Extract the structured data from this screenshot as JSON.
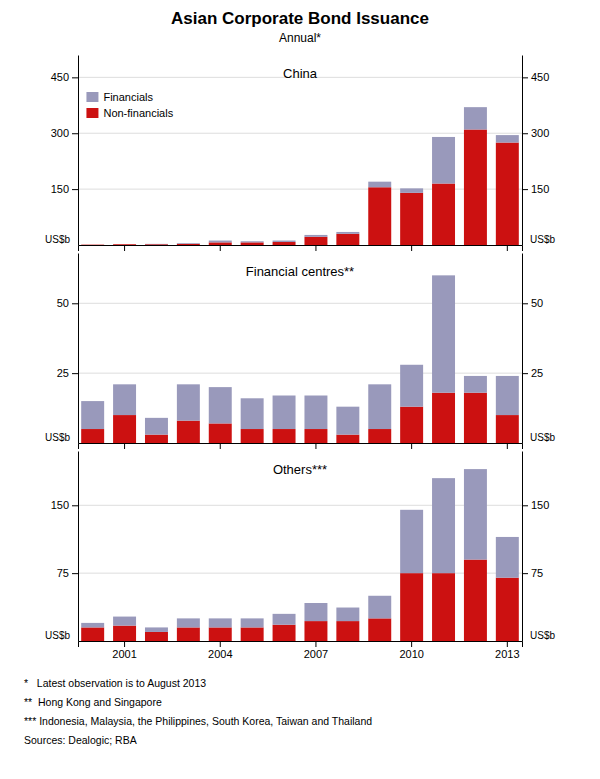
{
  "title": "Asian Corporate Bond Issuance",
  "subtitle": "Annual*",
  "annotations": [
    "*   Latest observation is to August 2013",
    "**  Hong Kong and Singapore",
    "*** Indonesia, Malaysia, the Philippines, South Korea, Taiwan and Thailand",
    "Sources: Dealogic; RBA"
  ],
  "chart_data": [
    {
      "type": "bar",
      "title": "China",
      "stacked": true,
      "grid": true,
      "legend": "upper left",
      "tick_labels": "y",
      "ylabel": "US$b",
      "y2label": "US$b",
      "categories": [
        null,
        "2001",
        null,
        null,
        "2004",
        null,
        null,
        "2007",
        null,
        null,
        "2010",
        null,
        null,
        "2013"
      ],
      "series": [
        {
          "name": "Non-financials",
          "color": "#cc1111",
          "values": [
            1,
            2,
            2,
            3,
            7,
            7,
            8,
            22,
            30,
            155,
            140,
            165,
            310,
            275
          ]
        },
        {
          "name": "Financials",
          "color": "#9999bb",
          "values": [
            0,
            0,
            1,
            2,
            5,
            3,
            4,
            5,
            5,
            15,
            12,
            125,
            60,
            20
          ]
        }
      ],
      "ylim": [
        0,
        510
      ],
      "yticks": [
        150,
        300,
        450
      ],
      "y2lim": [
        0,
        510
      ],
      "y2ticks": [
        150,
        300,
        450
      ]
    },
    {
      "type": "bar",
      "title": "Financial centres**",
      "stacked": true,
      "grid": true,
      "tick_labels": "y",
      "ylabel": "US$b",
      "y2label": "US$b",
      "categories": [
        null,
        "2001",
        null,
        null,
        "2004",
        null,
        null,
        "2007",
        null,
        null,
        "2010",
        null,
        null,
        "2013"
      ],
      "series": [
        {
          "color": "#cc1111",
          "values": [
            5,
            10,
            3,
            8,
            7,
            5,
            5,
            5,
            3,
            5,
            13,
            18,
            18,
            10
          ]
        },
        {
          "color": "#9999bb",
          "values": [
            10,
            11,
            6,
            13,
            13,
            11,
            12,
            12,
            10,
            16,
            15,
            42,
            6,
            14
          ]
        }
      ],
      "ylim": [
        0,
        68
      ],
      "yticks": [
        25,
        50
      ],
      "y2lim": [
        0,
        68
      ],
      "y2ticks": [
        25,
        50
      ]
    },
    {
      "type": "bar",
      "title": "Others***",
      "stacked": true,
      "grid": true,
      "ylabel": "US$b",
      "y2label": "US$b",
      "categories": [
        null,
        "2001",
        null,
        null,
        "2004",
        null,
        null,
        "2007",
        null,
        null,
        "2010",
        null,
        null,
        "2013"
      ],
      "series": [
        {
          "color": "#cc1111",
          "values": [
            15,
            17,
            10,
            15,
            15,
            15,
            18,
            22,
            22,
            25,
            75,
            75,
            90,
            70
          ]
        },
        {
          "color": "#9999bb",
          "values": [
            5,
            10,
            5,
            10,
            10,
            10,
            12,
            20,
            15,
            25,
            70,
            105,
            100,
            45
          ]
        }
      ],
      "ylim": [
        0,
        210
      ],
      "yticks": [
        75,
        150
      ],
      "y2lim": [
        0,
        210
      ],
      "y2ticks": [
        75,
        150
      ]
    }
  ]
}
